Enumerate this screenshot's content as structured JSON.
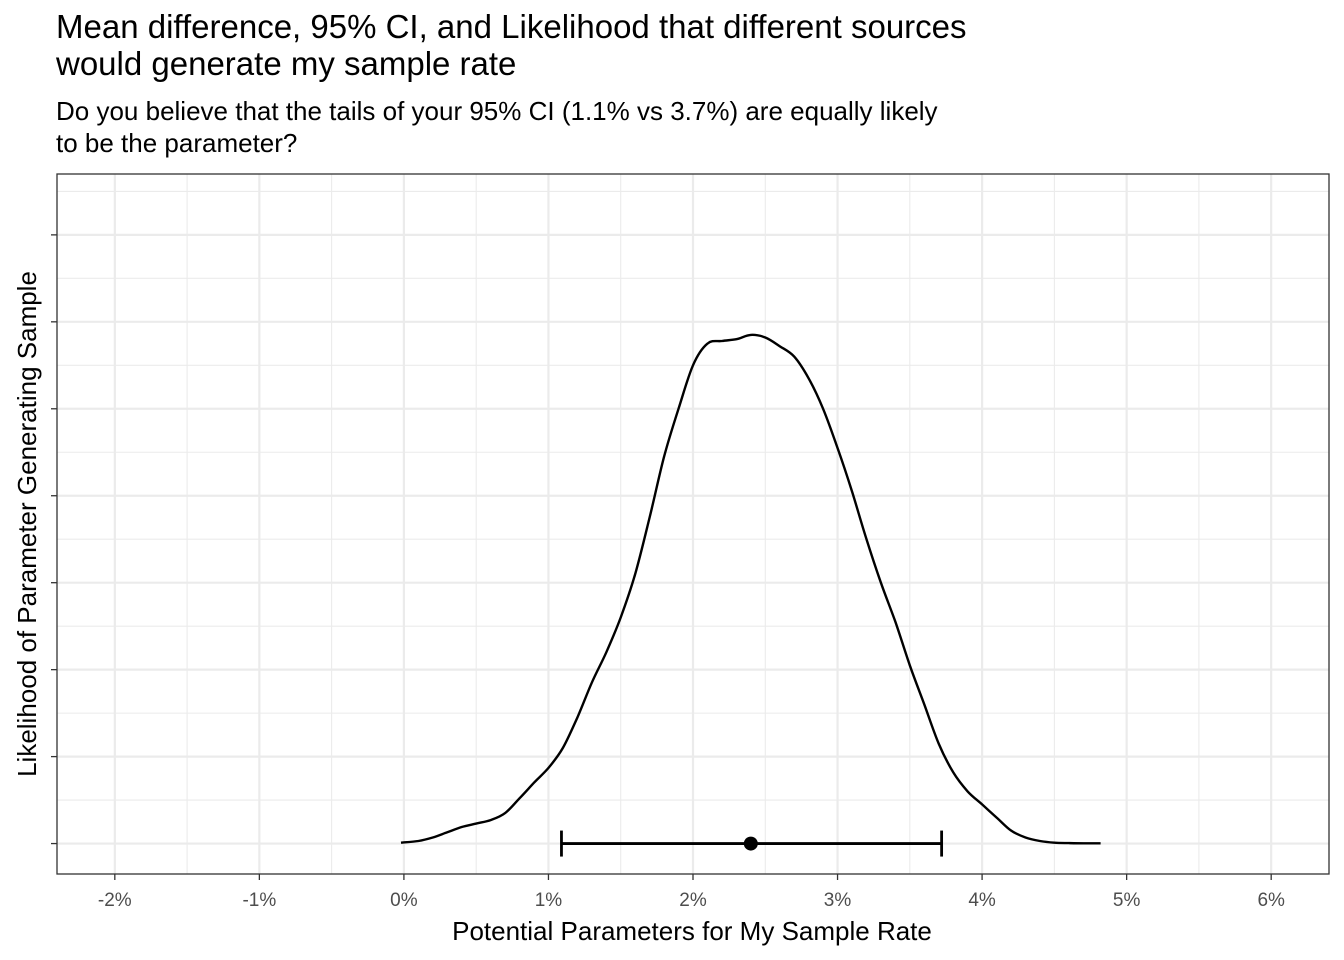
{
  "title_lines": [
    "Mean difference, 95% CI, and Likelihood that different sources",
    "would generate my sample rate"
  ],
  "subtitle_lines": [
    "Do you believe that the tails of your 95% CI (1.1% vs 3.7%) are equally likely",
    "to be the parameter?"
  ],
  "chart_data": {
    "type": "line",
    "title": "Mean difference, 95% CI, and Likelihood that different sources would generate my sample rate",
    "subtitle": "Do you believe that the tails of your 95% CI (1.1% vs 3.7%) are equally likely to be the parameter?",
    "xlabel": "Potential Parameters for My Sample Rate",
    "ylabel": "Likelihood of Parameter Generating Sample",
    "xlim": [
      -2.4,
      6.4
    ],
    "ylim": [
      -0.35,
      7.7
    ],
    "x_ticks": [
      -2,
      -1,
      0,
      1,
      2,
      3,
      4,
      5,
      6
    ],
    "x_tick_labels": [
      "-2%",
      "-1%",
      "0%",
      "1%",
      "2%",
      "3%",
      "4%",
      "5%",
      "6%"
    ],
    "y_tick_labels": [],
    "grid": true,
    "series": [
      {
        "type": "density",
        "x": [
          -0.02,
          0.1,
          0.2,
          0.3,
          0.4,
          0.5,
          0.6,
          0.7,
          0.8,
          0.9,
          1.0,
          1.1,
          1.2,
          1.3,
          1.4,
          1.5,
          1.6,
          1.7,
          1.8,
          1.9,
          2.0,
          2.1,
          2.2,
          2.3,
          2.4,
          2.5,
          2.6,
          2.7,
          2.8,
          2.9,
          3.0,
          3.1,
          3.2,
          3.3,
          3.4,
          3.5,
          3.6,
          3.7,
          3.8,
          3.9,
          4.0,
          4.1,
          4.2,
          4.3,
          4.4,
          4.5,
          4.6,
          4.7,
          4.82
        ],
        "y": [
          0.01,
          0.03,
          0.07,
          0.13,
          0.19,
          0.23,
          0.27,
          0.35,
          0.52,
          0.7,
          0.87,
          1.1,
          1.45,
          1.85,
          2.2,
          2.6,
          3.1,
          3.75,
          4.45,
          5.0,
          5.5,
          5.75,
          5.78,
          5.8,
          5.85,
          5.82,
          5.72,
          5.6,
          5.35,
          5.0,
          4.55,
          4.05,
          3.5,
          3.0,
          2.55,
          2.05,
          1.6,
          1.15,
          0.82,
          0.6,
          0.45,
          0.3,
          0.15,
          0.07,
          0.03,
          0.01,
          0.005,
          0.003,
          0.003
        ]
      },
      {
        "type": "point_interval",
        "point": 2.4,
        "ci_low": 1.09,
        "ci_high": 3.72,
        "y": 0
      }
    ]
  }
}
